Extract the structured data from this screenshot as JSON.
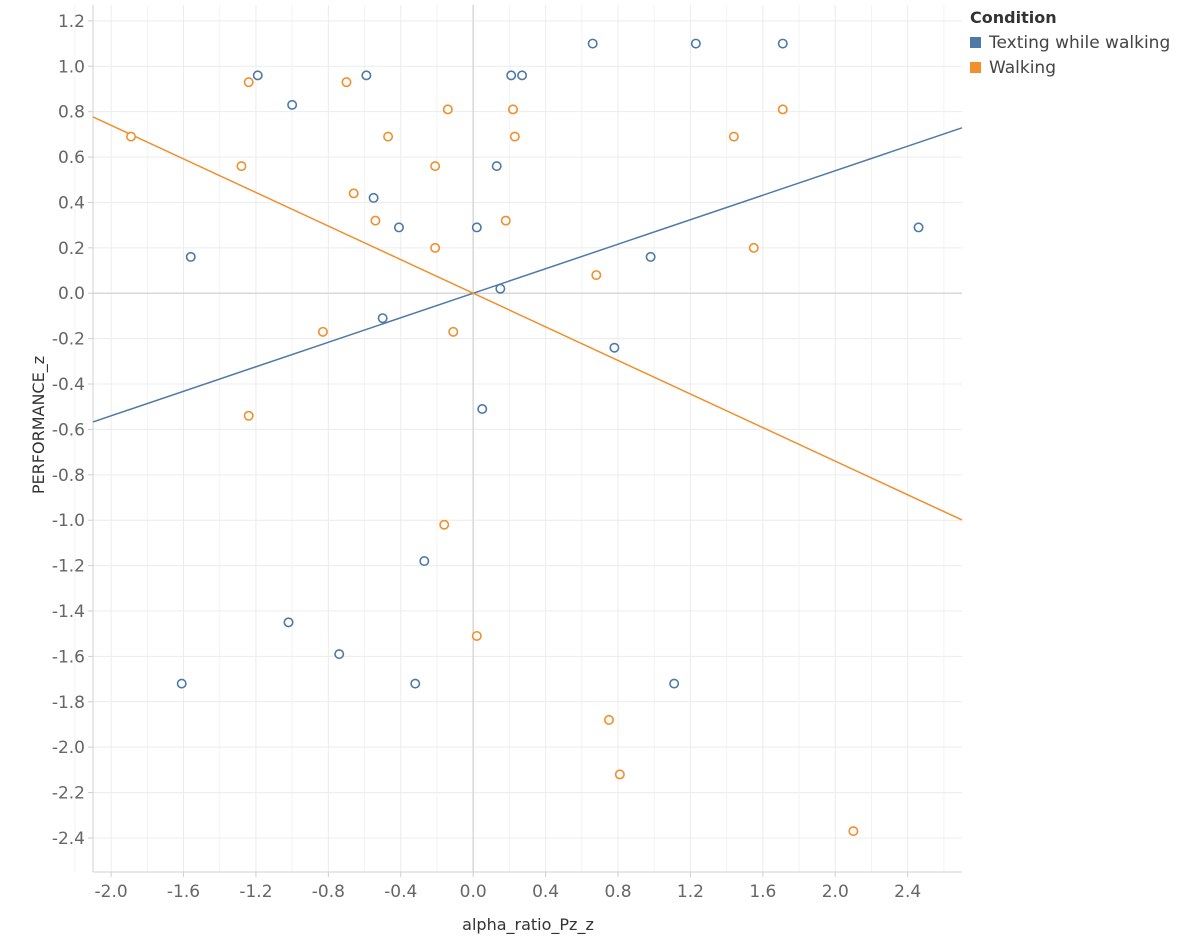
{
  "chart_data": {
    "type": "scatter",
    "xlabel": "alpha_ratio_Pz_z",
    "ylabel": "PERFORMANCE_z",
    "xlim": [
      -2.1,
      2.7
    ],
    "ylim": [
      -2.55,
      1.27
    ],
    "x_ticks": [
      -2.0,
      -1.6,
      -1.2,
      -0.8,
      -0.4,
      0.0,
      0.4,
      0.8,
      1.2,
      1.6,
      2.0,
      2.4
    ],
    "y_ticks": [
      1.2,
      1.0,
      0.8,
      0.6,
      0.4,
      0.2,
      0.0,
      -0.2,
      -0.4,
      -0.6,
      -0.8,
      -1.0,
      -1.2,
      -1.4,
      -1.6,
      -1.8,
      -2.0,
      -2.2,
      -2.4
    ],
    "grid": true,
    "legend": {
      "title": "Condition",
      "position": "top-right"
    },
    "series": [
      {
        "name": "Texting while walking",
        "color": "#4e79a7",
        "trend": {
          "slope": 0.27,
          "intercept": 0.0
        },
        "points": [
          [
            -1.19,
            0.96
          ],
          [
            -1.0,
            0.83
          ],
          [
            -0.59,
            0.96
          ],
          [
            0.21,
            0.96
          ],
          [
            0.27,
            0.96
          ],
          [
            0.66,
            1.1
          ],
          [
            1.23,
            1.1
          ],
          [
            1.71,
            1.1
          ],
          [
            0.13,
            0.56
          ],
          [
            -0.55,
            0.42
          ],
          [
            -0.41,
            0.29
          ],
          [
            0.02,
            0.29
          ],
          [
            -1.56,
            0.16
          ],
          [
            0.98,
            0.16
          ],
          [
            2.46,
            0.29
          ],
          [
            0.15,
            0.02
          ],
          [
            -0.5,
            -0.11
          ],
          [
            0.78,
            -0.24
          ],
          [
            0.05,
            -0.51
          ],
          [
            -0.27,
            -1.18
          ],
          [
            -1.02,
            -1.45
          ],
          [
            -0.74,
            -1.59
          ],
          [
            -1.61,
            -1.72
          ],
          [
            -0.32,
            -1.72
          ],
          [
            1.11,
            -1.72
          ]
        ]
      },
      {
        "name": "Walking",
        "color": "#f28e2b",
        "trend": {
          "slope": -0.37,
          "intercept": 0.0
        },
        "points": [
          [
            -1.89,
            0.69
          ],
          [
            -1.24,
            0.93
          ],
          [
            -0.7,
            0.93
          ],
          [
            -1.28,
            0.56
          ],
          [
            -0.47,
            0.69
          ],
          [
            -0.14,
            0.81
          ],
          [
            0.22,
            0.81
          ],
          [
            0.23,
            0.69
          ],
          [
            -0.21,
            0.56
          ],
          [
            1.44,
            0.69
          ],
          [
            1.71,
            0.81
          ],
          [
            -0.66,
            0.44
          ],
          [
            -0.54,
            0.32
          ],
          [
            0.18,
            0.32
          ],
          [
            -0.21,
            0.2
          ],
          [
            1.55,
            0.2
          ],
          [
            0.68,
            0.08
          ],
          [
            -0.83,
            -0.17
          ],
          [
            -0.11,
            -0.17
          ],
          [
            -1.24,
            -0.54
          ],
          [
            -0.16,
            -1.02
          ],
          [
            0.02,
            -1.51
          ],
          [
            0.75,
            -1.88
          ],
          [
            0.81,
            -2.12
          ],
          [
            2.1,
            -2.37
          ]
        ]
      }
    ]
  }
}
